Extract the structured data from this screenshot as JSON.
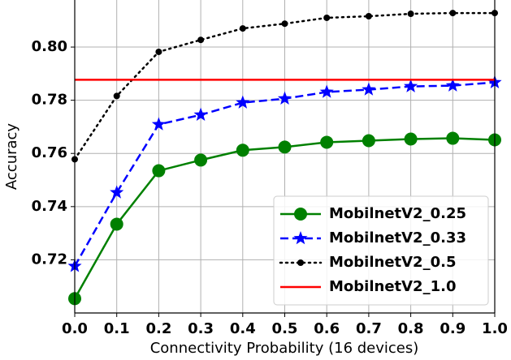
{
  "chart_data": {
    "type": "line",
    "xlabel": "Connectivity Probability (16 devices)",
    "ylabel": "Accuracy",
    "x": [
      0,
      0.1,
      0.2,
      0.3,
      0.4,
      0.5,
      0.6,
      0.7,
      0.8,
      0.9,
      1
    ],
    "series": [
      {
        "name": "MobilnetV2_0.25",
        "color": "#008000",
        "linestyle": "solid",
        "marker": "circle",
        "values": [
          0.7054,
          0.7334,
          0.7535,
          0.7575,
          0.7612,
          0.7624,
          0.7642,
          0.7648,
          0.7654,
          0.7657,
          0.7651
        ]
      },
      {
        "name": "MobilnetV2_0.33",
        "color": "#0000ff",
        "linestyle": "dashed",
        "marker": "star",
        "values": [
          0.7176,
          0.7453,
          0.7709,
          0.7745,
          0.7791,
          0.7806,
          0.7831,
          0.784,
          0.7852,
          0.7855,
          0.7867
        ]
      },
      {
        "name": "MobilnetV2_0.5",
        "color": "#000000",
        "linestyle": "dotted",
        "marker": "dot",
        "values": [
          0.7578,
          0.7816,
          0.7982,
          0.8027,
          0.807,
          0.8088,
          0.811,
          0.8116,
          0.8125,
          0.8128,
          0.8128
        ]
      },
      {
        "name": "MobilnetV2_1.0",
        "color": "#ff0000",
        "linestyle": "solid",
        "marker": "none",
        "values": [
          0.7877,
          0.7877,
          0.7877,
          0.7877,
          0.7877,
          0.7877,
          0.7877,
          0.7877,
          0.7877,
          0.7877,
          0.7877
        ]
      }
    ],
    "xlim": [
      0,
      1
    ],
    "xticks": [
      {
        "value": 0,
        "label": "0.0"
      },
      0.1,
      0.2,
      0.3,
      0.4,
      0.5,
      0.6,
      0.7,
      0.8,
      0.9,
      {
        "value": 1,
        "label": "1.0"
      }
    ],
    "ylim": [
      0.7,
      0.8177
    ],
    "yticks": [
      0.72,
      0.74,
      0.76,
      0.78,
      {
        "value": 0.8,
        "label": "0.80"
      }
    ],
    "grid": true,
    "legend": "lower right"
  }
}
